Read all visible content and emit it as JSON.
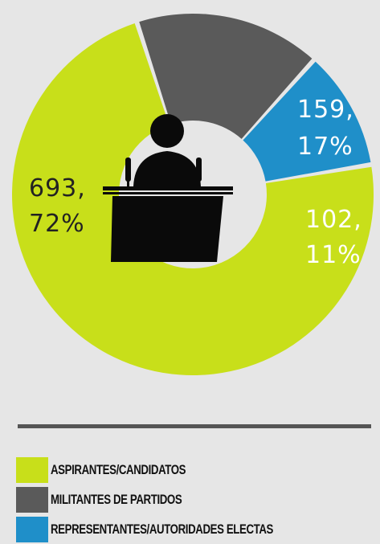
{
  "colors": {
    "background": "#e6e6e6",
    "divider": "#555555",
    "icon": "#0a0a0a"
  },
  "icon": "speaker-at-podium-icon",
  "chart_data": {
    "type": "pie",
    "variant": "donut",
    "slices": [
      {
        "label": "ASPIRANTES/CANDIDATOS",
        "value": 693,
        "percent": 72,
        "color": "#c8df1a",
        "value_text": "693,",
        "percent_text": "72%",
        "text_color": "#222222"
      },
      {
        "label": "MILITANTES DE PARTIDOS",
        "value": 159,
        "percent": 17,
        "color": "#5a5a5a",
        "value_text": "159,",
        "percent_text": "17%",
        "text_color": "#ffffff"
      },
      {
        "label": "REPRESENTANTES/AUTORIDADES ELECTAS",
        "value": 102,
        "percent": 11,
        "color": "#1f8fc9",
        "value_text": "102,",
        "percent_text": "11%",
        "text_color": "#ffffff"
      }
    ],
    "legend_position": "bottom-left"
  }
}
